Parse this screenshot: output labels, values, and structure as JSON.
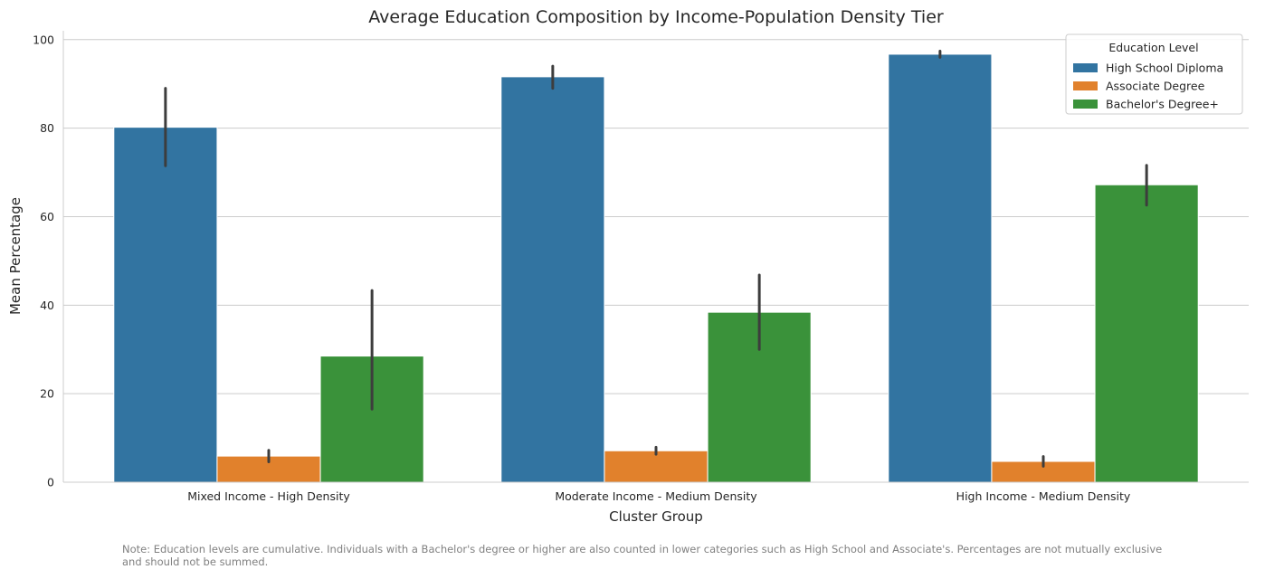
{
  "chart_data": {
    "type": "bar",
    "title": "Average Education Composition by Income-Population Density Tier",
    "xlabel": "Cluster Group",
    "ylabel": "Mean Percentage",
    "ylim": [
      0,
      102
    ],
    "yticks": [
      0,
      20,
      40,
      60,
      80,
      100
    ],
    "grid": "horizontal",
    "categories": [
      "Mixed Income - High Density",
      "Moderate Income - Medium Density",
      "High Income - Medium Density"
    ],
    "legend": {
      "title": "Education Level",
      "placement": "top-right"
    },
    "series": [
      {
        "name": "High School Diploma",
        "color": "#3274a1",
        "values": [
          80.2,
          91.6,
          96.7
        ],
        "ci_low": [
          71.5,
          89.0,
          96.0
        ],
        "ci_high": [
          89.0,
          94.0,
          97.4
        ]
      },
      {
        "name": "Associate Degree",
        "color": "#e1812c",
        "values": [
          5.9,
          7.1,
          4.7
        ],
        "ci_low": [
          4.6,
          6.3,
          3.6
        ],
        "ci_high": [
          7.2,
          7.9,
          5.8
        ]
      },
      {
        "name": "Bachelor's Degree+",
        "color": "#3a923a",
        "values": [
          28.5,
          38.4,
          67.2
        ],
        "ci_low": [
          16.5,
          30.0,
          62.6
        ],
        "ci_high": [
          43.3,
          46.8,
          71.6
        ]
      }
    ]
  },
  "note": {
    "line1": "Note: Education levels are cumulative. Individuals with a Bachelor's degree or higher are also counted in lower categories such as High School and Associate's. Percentages are not mutually exclusive",
    "line2": "and should not be summed."
  }
}
